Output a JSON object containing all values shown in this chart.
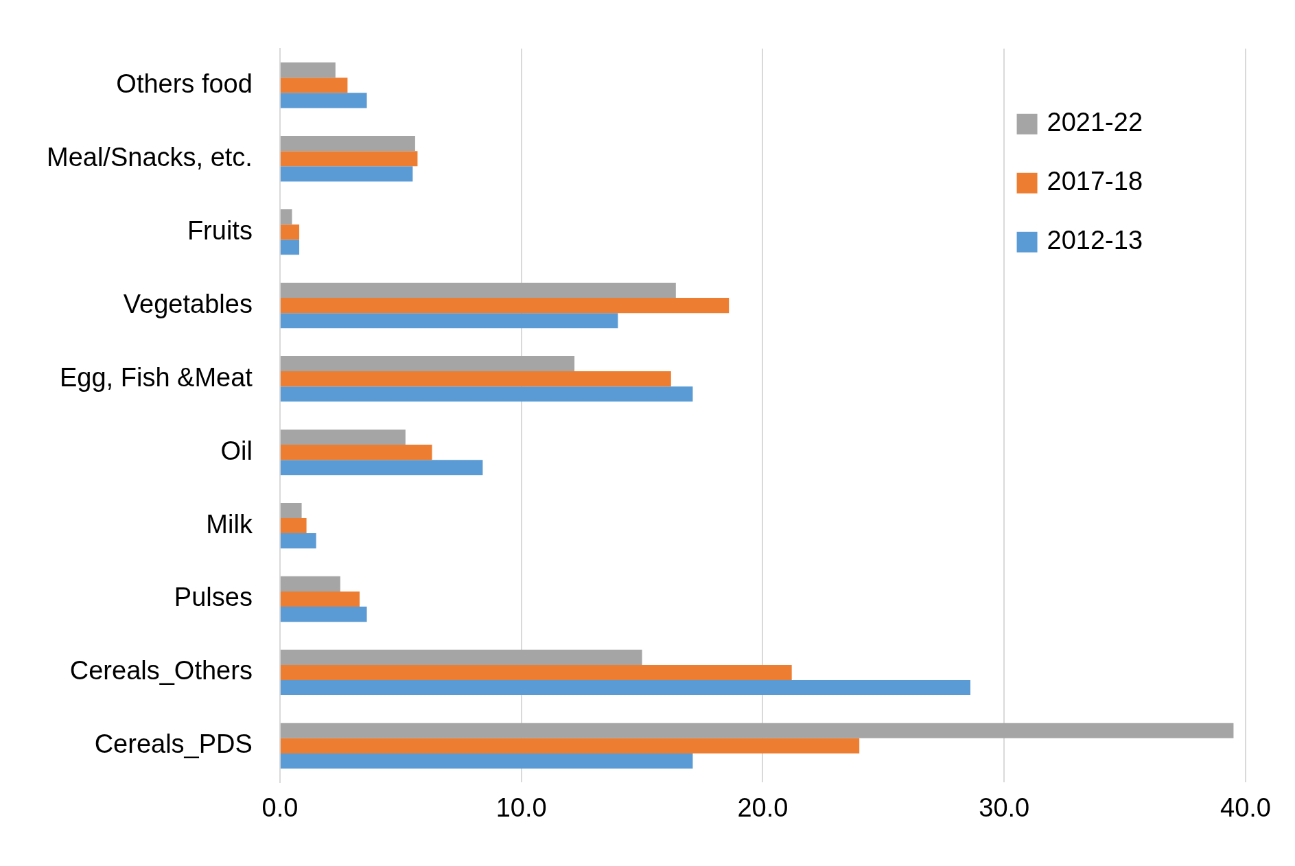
{
  "chart_data": {
    "type": "bar",
    "orientation": "horizontal",
    "categories": [
      "Others food",
      "Meal/Snacks, etc.",
      "Fruits",
      "Vegetables",
      "Egg, Fish &Meat",
      "Oil",
      "Milk",
      "Pulses",
      "Cereals_Others",
      "Cereals_PDS"
    ],
    "series": [
      {
        "name": "2021-22",
        "color": "#a5a5a5",
        "values": [
          2.3,
          5.6,
          0.5,
          16.4,
          12.2,
          5.2,
          0.9,
          2.5,
          15.0,
          39.5
        ]
      },
      {
        "name": "2017-18",
        "color": "#ed7d31",
        "values": [
          2.8,
          5.7,
          0.8,
          18.6,
          16.2,
          6.3,
          1.1,
          3.3,
          21.2,
          24.0
        ]
      },
      {
        "name": "2012-13",
        "color": "#5b9bd5",
        "values": [
          3.6,
          5.5,
          0.8,
          14.0,
          17.1,
          8.4,
          1.5,
          3.6,
          28.6,
          17.1
        ]
      }
    ],
    "xlim": [
      0,
      40
    ],
    "xticks": [
      {
        "value": 0,
        "label": "0.0"
      },
      {
        "value": 10,
        "label": "10.0"
      },
      {
        "value": 20,
        "label": "20.0"
      },
      {
        "value": 30,
        "label": "30.0"
      },
      {
        "value": 40,
        "label": "40.0"
      }
    ],
    "grid": "x",
    "legend": "top right"
  }
}
